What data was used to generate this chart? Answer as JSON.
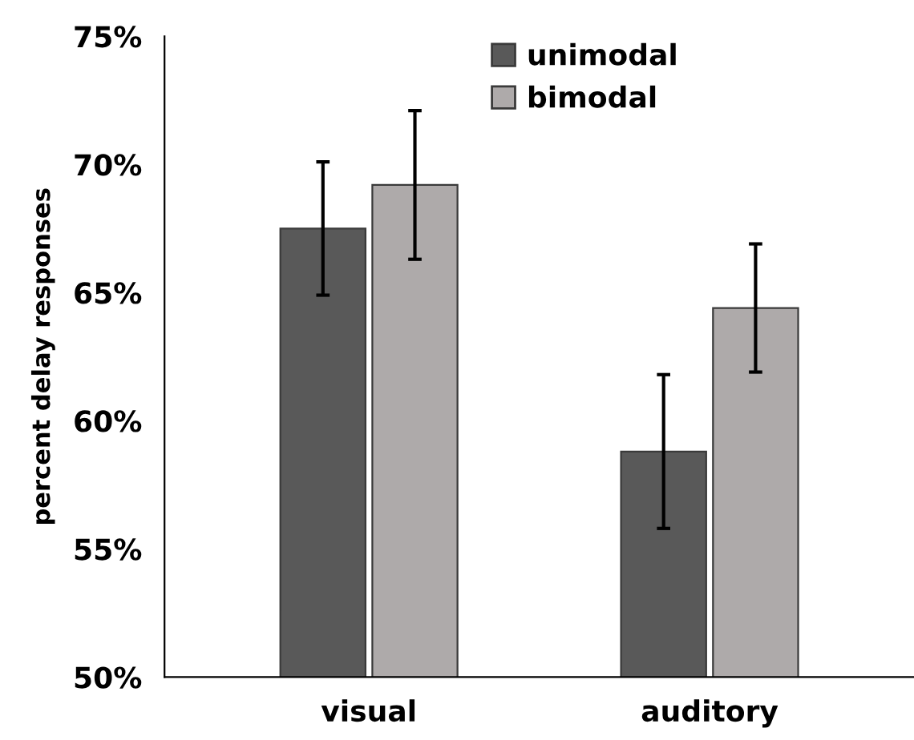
{
  "chart_data": {
    "type": "bar",
    "ylabel": "percent delay responses",
    "categories": [
      "visual",
      "auditory"
    ],
    "series": [
      {
        "name": "unimodal",
        "color": "#595959",
        "values": [
          67.5,
          58.8
        ],
        "errors": [
          2.6,
          3.0
        ]
      },
      {
        "name": "bimodal",
        "color": "#aeaaaa",
        "values": [
          69.2,
          64.4
        ],
        "errors": [
          2.9,
          2.5
        ]
      }
    ],
    "ylim": [
      50,
      75
    ],
    "yticks": [
      {
        "value": 50,
        "label": "50%"
      },
      {
        "value": 55,
        "label": "55%"
      },
      {
        "value": 60,
        "label": "60%"
      },
      {
        "value": 65,
        "label": "65%"
      },
      {
        "value": 70,
        "label": "70%"
      },
      {
        "value": 75,
        "label": "75%"
      }
    ],
    "grid": false,
    "legend": "top right"
  }
}
